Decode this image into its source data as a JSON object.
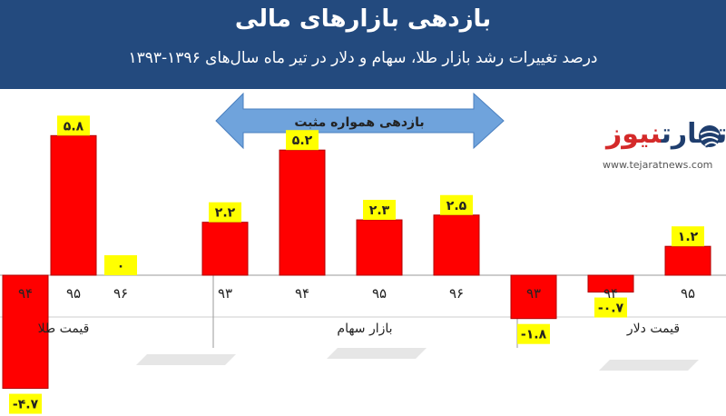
{
  "header": {
    "title": "بازدهی بازارهای مالی",
    "subtitle": "درصد تغییرات رشد بازار طلا، سهام و دلار در تیر ماه سال‌های ۱۳۹۶-۱۳۹۳"
  },
  "logo": {
    "name_dark": "تجارت",
    "name_accent": "نیوز",
    "url": "www.tejaratnews.com",
    "icon": "globe-icon"
  },
  "colors": {
    "header_bg": "#234a7e",
    "bar": "#ff0000",
    "label_bg": "#ffff00",
    "arrow": "#6fa3dc"
  },
  "chart_data": {
    "type": "bar",
    "title": "",
    "annotation": "بازدهی همواره مثبت",
    "groups": [
      {
        "name": "قیمت طلا",
        "categories": [
          "۹۴",
          "۹۵",
          "۹۶"
        ],
        "values": [
          -4.7,
          5.8,
          0
        ],
        "value_labels": [
          "-۴.۷",
          "۵.۸",
          "۰"
        ]
      },
      {
        "name": "بازار سهام",
        "categories": [
          "۹۳",
          "۹۴",
          "۹۵",
          "۹۶"
        ],
        "values": [
          2.2,
          5.2,
          2.3,
          2.5
        ],
        "value_labels": [
          "۲.۲",
          "۵.۲",
          "۲.۳",
          "۲.۵"
        ]
      },
      {
        "name": "قیمت دلار",
        "categories": [
          "۹۳",
          "۹۴",
          "۹۵"
        ],
        "values": [
          -1.8,
          -0.7,
          1.2
        ],
        "value_labels": [
          "-۱.۸",
          "-۰.۷",
          "۱.۲"
        ]
      }
    ],
    "grid": false,
    "legend": "none"
  }
}
